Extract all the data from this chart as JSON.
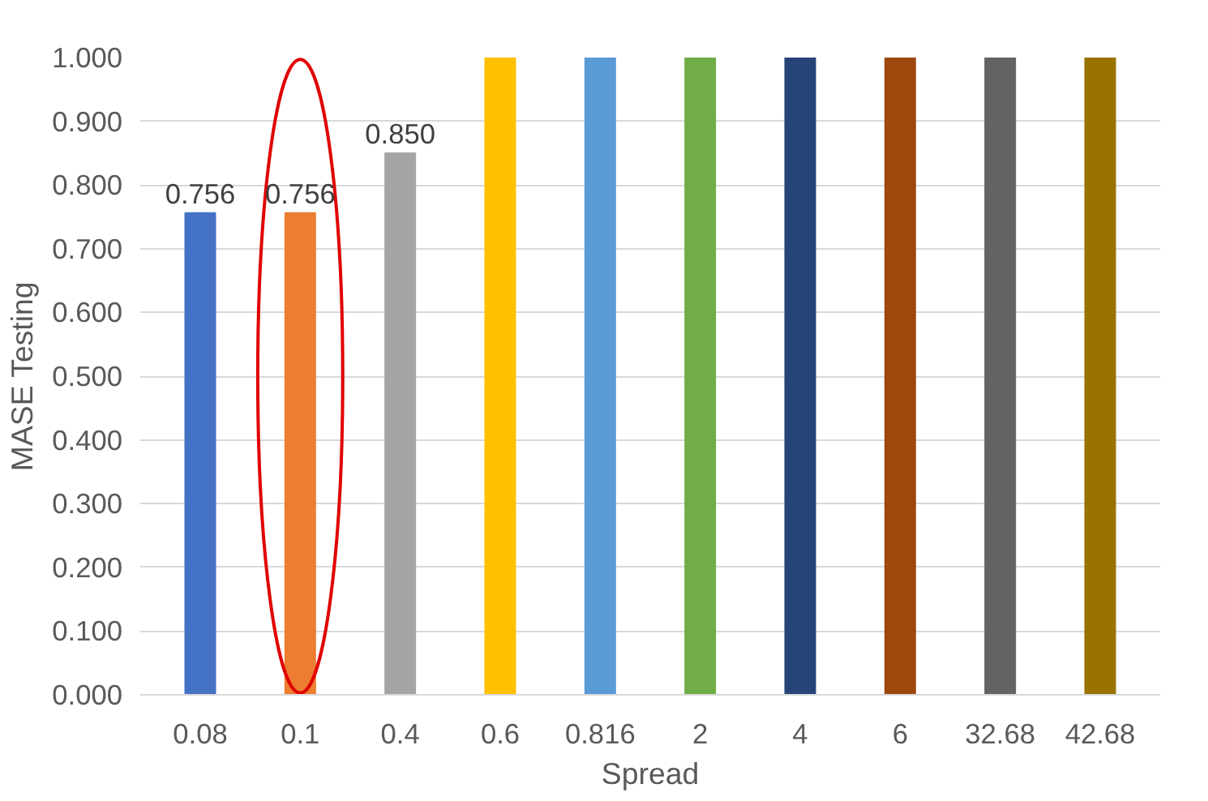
{
  "chart_data": {
    "type": "bar",
    "xlabel": "Spread",
    "ylabel": "MASE Testing",
    "categories": [
      "0.08",
      "0.1",
      "0.4",
      "0.6",
      "0.816",
      "2",
      "4",
      "6",
      "32.68",
      "42.68"
    ],
    "values": [
      0.756,
      0.756,
      0.85,
      1.0,
      1.0,
      1.0,
      1.0,
      1.0,
      1.0,
      1.0
    ],
    "colors": [
      "#4472c4",
      "#ed7d31",
      "#a5a5a5",
      "#ffc000",
      "#5b9bd5",
      "#70ad47",
      "#264478",
      "#9e480e",
      "#636363",
      "#997300"
    ],
    "value_labels": [
      "0.756",
      "0.756",
      "0.850",
      null,
      null,
      null,
      null,
      null,
      null,
      null
    ],
    "ylim": [
      0,
      1.0
    ],
    "yticks": [
      {
        "value": 0,
        "label": "0.000"
      },
      {
        "value": 0.1,
        "label": "0.100"
      },
      {
        "value": 0.2,
        "label": "0.200"
      },
      {
        "value": 0.3,
        "label": "0.300"
      },
      {
        "value": 0.4,
        "label": "0.400"
      },
      {
        "value": 0.5,
        "label": "0.500"
      },
      {
        "value": 0.6,
        "label": "0.600"
      },
      {
        "value": 0.7,
        "label": "0.700"
      },
      {
        "value": 0.8,
        "label": "0.800"
      },
      {
        "value": 0.9,
        "label": "0.900"
      },
      {
        "value": 1.0,
        "label": "1.000"
      }
    ],
    "grid": "y"
  }
}
